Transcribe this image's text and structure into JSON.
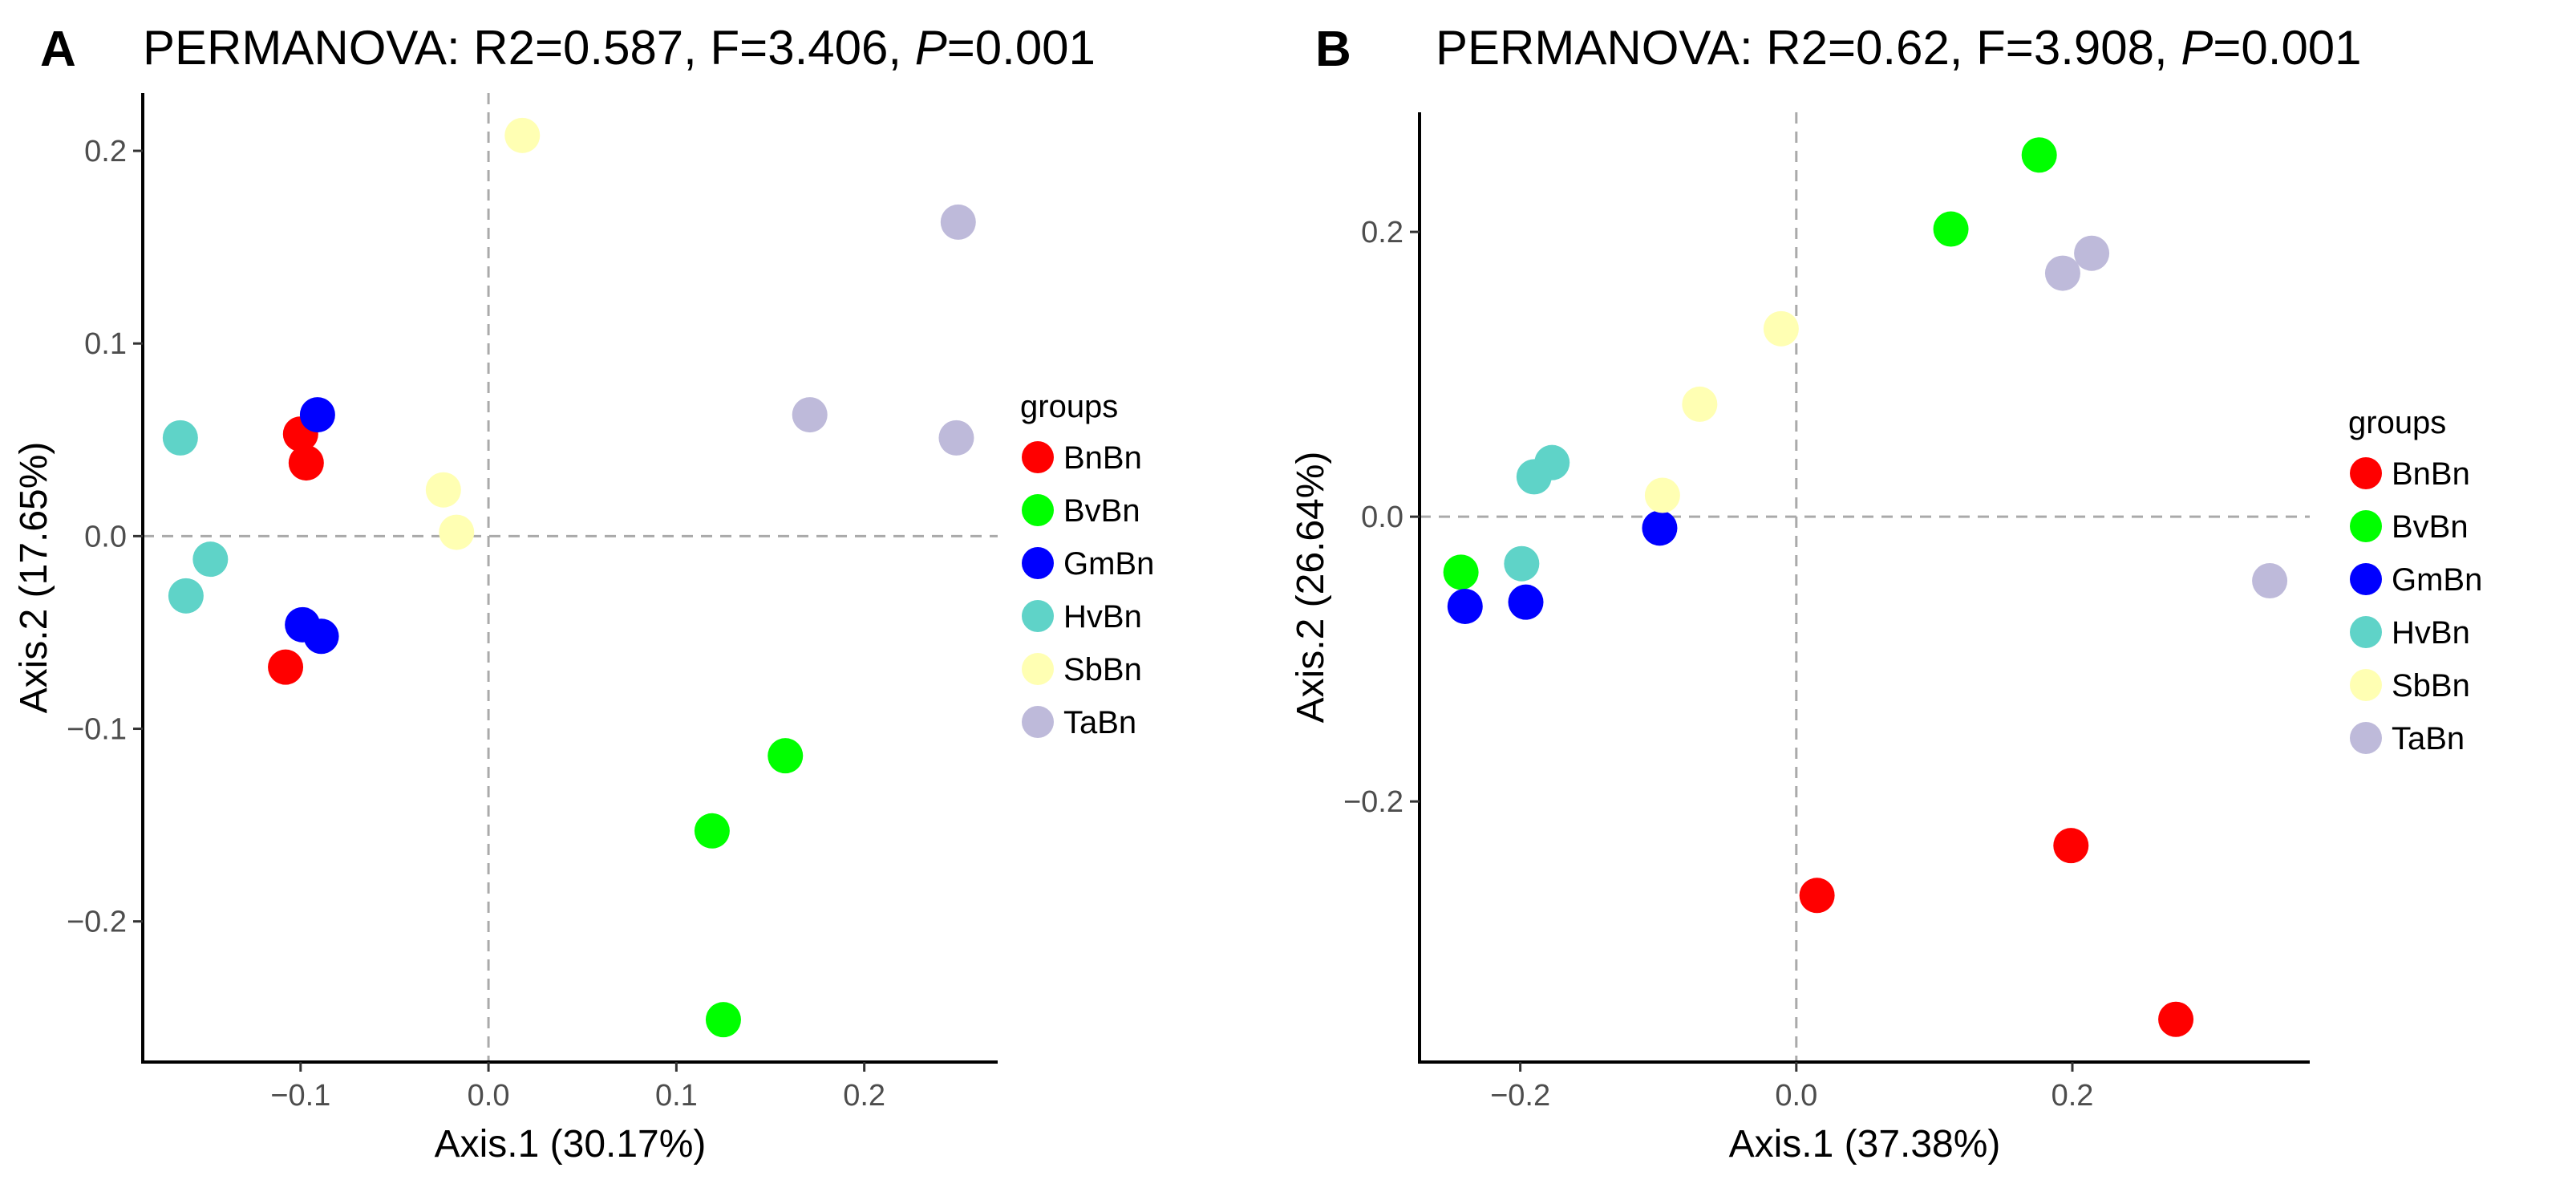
{
  "chart_data": [
    {
      "type": "scatter",
      "panel_label": "A",
      "title": "PERMANOVA: R2=0.587, F=3.406, ",
      "title_p": "P",
      "title_p_value": "=0.001",
      "xlabel": "Axis.1 (30.17%)",
      "ylabel": "Axis.2 (17.65%)",
      "xlim": [
        -0.184,
        0.271
      ],
      "ylim": [
        -0.273,
        0.23
      ],
      "xticks": [
        -0.1,
        0.0,
        0.1,
        0.2
      ],
      "xtick_labels": [
        "−0.1",
        "0.0",
        "0.1",
        "0.2"
      ],
      "yticks": [
        -0.2,
        -0.1,
        0.0,
        0.1,
        0.2
      ],
      "ytick_labels": [
        "−0.2",
        "−0.1",
        "0.0",
        "0.1",
        "0.2"
      ],
      "reference_lines": {
        "x": 0,
        "y": 0
      },
      "grid": false,
      "legend_title": "groups",
      "legend_position": "right",
      "series": [
        {
          "name": "BnBn",
          "color": "#FF0000",
          "points": [
            [
              -0.1,
              0.053
            ],
            [
              -0.097,
              0.038
            ],
            [
              -0.108,
              -0.068
            ]
          ]
        },
        {
          "name": "BvBn",
          "color": "#00FF00",
          "points": [
            [
              0.158,
              -0.114
            ],
            [
              0.119,
              -0.153
            ],
            [
              0.125,
              -0.251
            ]
          ]
        },
        {
          "name": "GmBn",
          "color": "#0000FF",
          "points": [
            [
              -0.091,
              0.063
            ],
            [
              -0.099,
              -0.046
            ],
            [
              -0.089,
              -0.052
            ]
          ]
        },
        {
          "name": "HvBn",
          "color": "#5FD3C8",
          "points": [
            [
              -0.164,
              0.051
            ],
            [
              -0.148,
              -0.012
            ],
            [
              -0.161,
              -0.031
            ]
          ]
        },
        {
          "name": "SbBn",
          "color": "#FFFFB3",
          "points": [
            [
              0.018,
              0.208
            ],
            [
              -0.024,
              0.024
            ],
            [
              -0.017,
              0.002
            ]
          ]
        },
        {
          "name": "TaBn",
          "color": "#BEBADA",
          "points": [
            [
              0.25,
              0.163
            ],
            [
              0.171,
              0.063
            ],
            [
              0.249,
              0.051
            ]
          ]
        }
      ]
    },
    {
      "type": "scatter",
      "panel_label": "B",
      "title": "PERMANOVA: R2=0.62, F=3.908, ",
      "title_p": "P",
      "title_p_value": "=0.001",
      "xlabel": "Axis.1 (37.38%)",
      "ylabel": "Axis.2 (26.64%)",
      "xlim": [
        -0.273,
        0.372
      ],
      "ylim": [
        -0.383,
        0.284
      ],
      "xticks": [
        -0.2,
        0.0,
        0.2
      ],
      "xtick_labels": [
        "−0.2",
        "0.0",
        "0.2"
      ],
      "yticks": [
        -0.2,
        0.0,
        0.2
      ],
      "ytick_labels": [
        "−0.2",
        "0.0",
        "0.2"
      ],
      "reference_lines": {
        "x": 0,
        "y": 0
      },
      "grid": false,
      "legend_title": "groups",
      "legend_position": "right",
      "series": [
        {
          "name": "BnBn",
          "color": "#FF0000",
          "points": [
            [
              0.015,
              -0.266
            ],
            [
              0.199,
              -0.231
            ],
            [
              0.275,
              -0.353
            ]
          ]
        },
        {
          "name": "BvBn",
          "color": "#00FF00",
          "points": [
            [
              0.176,
              0.254
            ],
            [
              0.112,
              0.202
            ],
            [
              -0.243,
              -0.039
            ]
          ]
        },
        {
          "name": "GmBn",
          "color": "#0000FF",
          "points": [
            [
              -0.099,
              -0.008
            ],
            [
              -0.24,
              -0.063
            ],
            [
              -0.196,
              -0.06
            ]
          ]
        },
        {
          "name": "HvBn",
          "color": "#5FD3C8",
          "points": [
            [
              -0.177,
              0.038
            ],
            [
              -0.19,
              0.028
            ],
            [
              -0.199,
              -0.033
            ]
          ]
        },
        {
          "name": "SbBn",
          "color": "#FFFFB3",
          "points": [
            [
              -0.011,
              0.132
            ],
            [
              -0.07,
              0.079
            ],
            [
              -0.097,
              0.015
            ]
          ]
        },
        {
          "name": "TaBn",
          "color": "#BEBADA",
          "points": [
            [
              0.214,
              0.185
            ],
            [
              0.193,
              0.171
            ],
            [
              0.343,
              -0.045
            ]
          ]
        }
      ]
    }
  ]
}
